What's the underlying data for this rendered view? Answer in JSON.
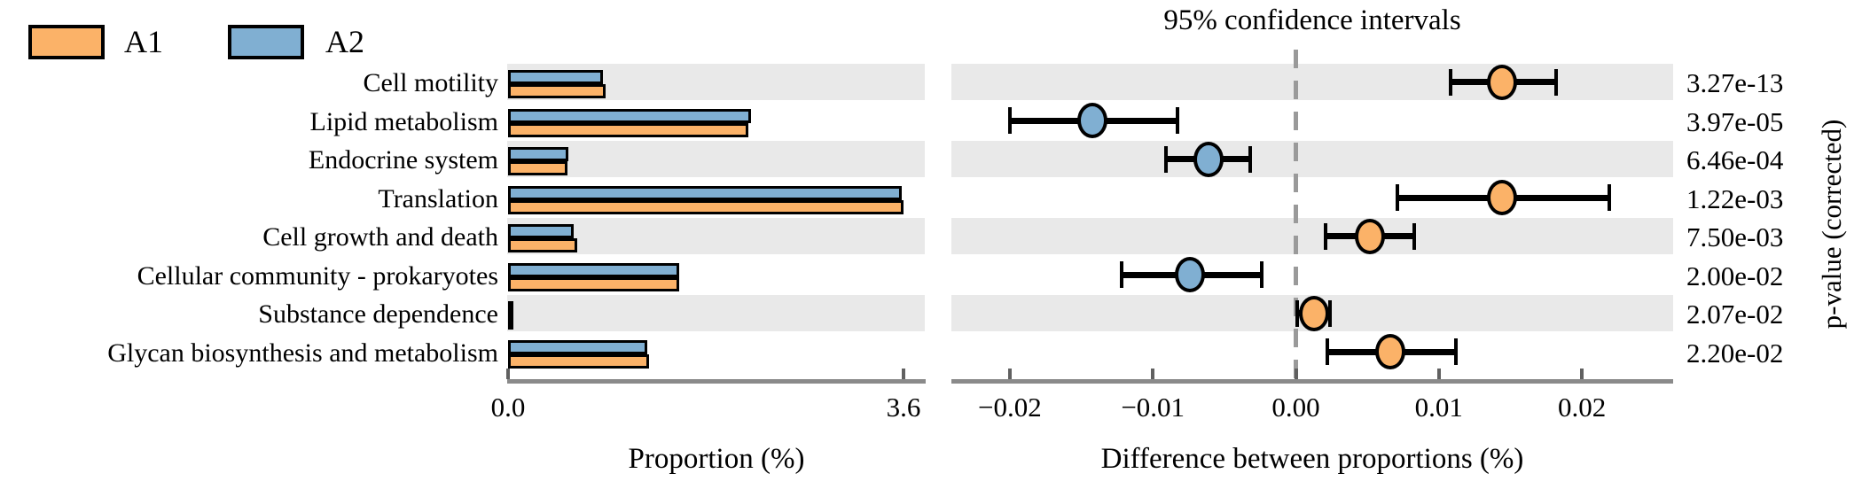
{
  "legend": {
    "items": [
      {
        "label": "A1",
        "color": "#fbb268"
      },
      {
        "label": "A2",
        "color": "#80afd2"
      }
    ]
  },
  "colors": {
    "a1_orange": "#fbb268",
    "a2_blue": "#80afd2",
    "stripe_gray": "#e9e9e9",
    "axis_gray": "#8a8a8a",
    "dash_gray": "#9a9a9a",
    "outline_black": "#000000"
  },
  "chart_data": {
    "type": "extended_error_bar",
    "title": "95% confidence intervals",
    "categories": [
      "Cell motility",
      "Lipid metabolism",
      "Endocrine system",
      "Translation",
      "Cell growth and death",
      "Cellular community - prokaryotes",
      "Substance dependence",
      "Glycan biosynthesis and metabolism"
    ],
    "proportions": {
      "xlabel": "Proportion (%)",
      "xlim": [
        0,
        3.8
      ],
      "tick_values": [
        0.0,
        3.6
      ],
      "tick_labels": [
        "0.0",
        "3.6"
      ],
      "series": [
        {
          "name": "A1",
          "color": "#fbb268",
          "values": [
            0.89,
            2.19,
            0.54,
            3.6,
            0.63,
            1.56,
            0.05,
            1.28
          ]
        },
        {
          "name": "A2",
          "color": "#80afd2",
          "values": [
            0.86,
            2.21,
            0.55,
            3.58,
            0.6,
            1.56,
            0.05,
            1.27
          ]
        }
      ]
    },
    "differences": {
      "xlabel": "Difference between proportions (%)",
      "xlim": [
        -0.0241,
        0.0264
      ],
      "tick_values": [
        -0.02,
        -0.01,
        0.0,
        0.01,
        0.02
      ],
      "tick_labels": [
        "−0.02",
        "−0.01",
        "0.00",
        "0.01",
        "0.02"
      ],
      "zero_line": 0.0,
      "points": [
        {
          "category": "Cell motility",
          "mean": 0.0144,
          "ci_lo": 0.0108,
          "ci_hi": 0.0182,
          "group": "A1"
        },
        {
          "category": "Lipid metabolism",
          "mean": -0.0142,
          "ci_lo": -0.02,
          "ci_hi": -0.0083,
          "group": "A2"
        },
        {
          "category": "Endocrine system",
          "mean": -0.0061,
          "ci_lo": -0.0091,
          "ci_hi": -0.0032,
          "group": "A2"
        },
        {
          "category": "Translation",
          "mean": 0.0144,
          "ci_lo": 0.0071,
          "ci_hi": 0.0219,
          "group": "A1"
        },
        {
          "category": "Cell growth and death",
          "mean": 0.0052,
          "ci_lo": 0.0021,
          "ci_hi": 0.0083,
          "group": "A1"
        },
        {
          "category": "Cellular community - prokaryotes",
          "mean": -0.0074,
          "ci_lo": -0.0122,
          "ci_hi": -0.0024,
          "group": "A2"
        },
        {
          "category": "Substance dependence",
          "mean": 0.0013,
          "ci_lo": 0.0001,
          "ci_hi": 0.0024,
          "group": "A1"
        },
        {
          "category": "Glycan biosynthesis and metabolism",
          "mean": 0.0066,
          "ci_lo": 0.0022,
          "ci_hi": 0.0112,
          "group": "A1"
        }
      ]
    },
    "p_values": {
      "axis_label": "p-value (corrected)",
      "values": [
        "3.27e-13",
        "3.97e-05",
        "6.46e-04",
        "1.22e-03",
        "7.50e-03",
        "2.00e-02",
        "2.07e-02",
        "2.20e-02"
      ]
    }
  }
}
